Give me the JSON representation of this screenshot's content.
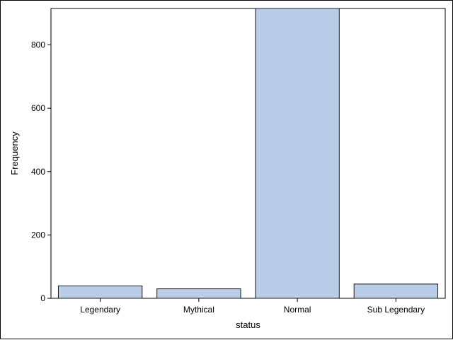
{
  "chart_data": {
    "type": "bar",
    "categories": [
      "Legendary",
      "Mythical",
      "Normal",
      "Sub Legendary"
    ],
    "values": [
      39,
      30,
      915,
      45
    ],
    "xlabel": "status",
    "ylabel": "Frequency",
    "ylim": [
      0,
      915
    ],
    "yticks": [
      0,
      200,
      400,
      600,
      800
    ],
    "grid": false,
    "legend": "none",
    "colors": {
      "bar_fill": "#b9cde8",
      "bar_stroke": "#1a1a1a",
      "axis": "#000000",
      "background": "#ffffff"
    }
  }
}
